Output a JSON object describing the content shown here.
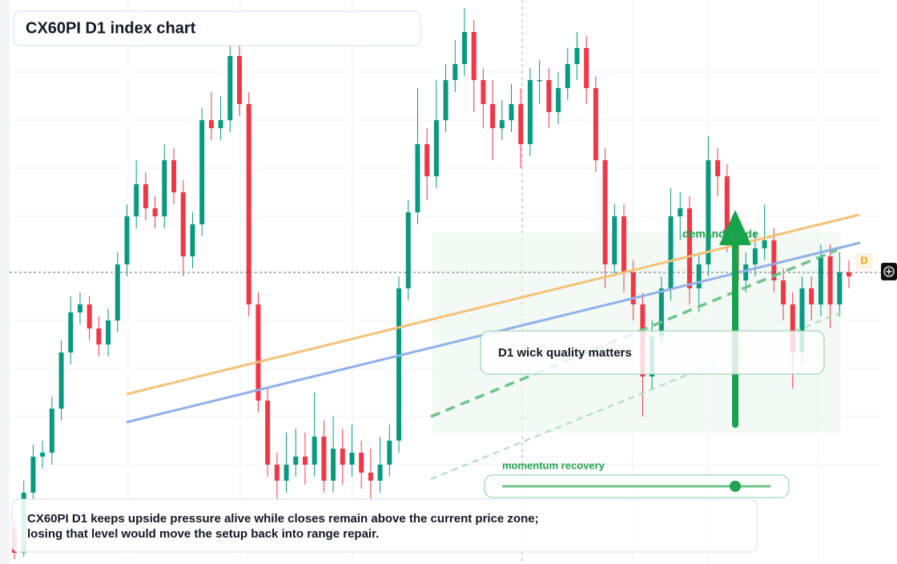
{
  "chart_data": {
    "type": "candlestick",
    "title": "CX60PI D1 index chart",
    "annotations": [
      "demand guide",
      "D1 wick quality matters",
      "momentum recovery",
      "D"
    ],
    "caption": [
      "CX60PI D1 keeps upside pressure alive while closes remain above the current price zone;",
      "losing that level would move the setup back into range repair."
    ],
    "up_color": "#089981",
    "down_color": "#f23645",
    "ylim": [
      0,
      700
    ],
    "open": [
      40,
      10,
      85,
      130,
      135,
      190,
      260,
      310,
      320,
      290,
      270,
      300,
      370,
      430,
      470,
      440,
      430,
      500,
      460,
      380,
      420,
      550,
      540,
      550,
      630,
      570,
      320,
      200,
      120,
      100,
      120,
      130,
      120,
      155,
      100,
      140,
      120,
      135,
      110,
      100,
      120,
      150,
      340,
      435,
      520,
      480,
      550,
      600,
      620,
      660,
      600,
      570,
      540,
      550,
      570,
      520,
      600,
      600,
      560,
      590,
      620,
      640,
      590,
      500,
      370,
      430,
      360,
      320,
      230,
      280,
      340,
      430,
      440,
      340,
      370,
      500,
      480,
      400,
      350,
      370,
      390,
      400,
      350,
      320,
      260,
      340,
      320,
      380,
      320,
      360
    ],
    "high": [
      55,
      100,
      145,
      150,
      205,
      275,
      330,
      335,
      330,
      305,
      315,
      385,
      445,
      500,
      485,
      455,
      520,
      515,
      475,
      435,
      565,
      585,
      580,
      645,
      645,
      585,
      335,
      215,
      135,
      160,
      165,
      160,
      210,
      175,
      180,
      165,
      170,
      150,
      140,
      155,
      170,
      355,
      450,
      590,
      540,
      600,
      620,
      650,
      690,
      675,
      615,
      600,
      575,
      595,
      590,
      615,
      625,
      615,
      610,
      640,
      660,
      655,
      605,
      515,
      445,
      445,
      375,
      335,
      300,
      355,
      465,
      460,
      455,
      385,
      530,
      515,
      495,
      415,
      385,
      410,
      445,
      415,
      365,
      335,
      355,
      355,
      395,
      395,
      385,
      375
    ],
    "low": [
      2,
      5,
      70,
      115,
      120,
      175,
      245,
      295,
      275,
      255,
      255,
      285,
      355,
      415,
      425,
      415,
      415,
      445,
      355,
      365,
      405,
      525,
      525,
      535,
      555,
      305,
      185,
      105,
      70,
      85,
      105,
      95,
      105,
      85,
      85,
      95,
      105,
      90,
      70,
      85,
      105,
      135,
      325,
      420,
      450,
      465,
      535,
      585,
      605,
      560,
      540,
      500,
      525,
      535,
      490,
      505,
      570,
      540,
      545,
      575,
      600,
      570,
      485,
      340,
      355,
      335,
      300,
      180,
      215,
      265,
      325,
      400,
      320,
      310,
      355,
      455,
      385,
      320,
      335,
      355,
      375,
      335,
      300,
      215,
      245,
      300,
      305,
      290,
      305,
      340
    ],
    "close": [
      10,
      85,
      130,
      135,
      190,
      260,
      310,
      320,
      290,
      270,
      300,
      370,
      430,
      470,
      440,
      430,
      500,
      460,
      380,
      420,
      550,
      540,
      550,
      630,
      570,
      320,
      200,
      120,
      100,
      120,
      130,
      120,
      155,
      100,
      140,
      120,
      135,
      110,
      100,
      120,
      150,
      340,
      435,
      520,
      480,
      550,
      600,
      620,
      660,
      600,
      570,
      540,
      550,
      570,
      520,
      600,
      600,
      560,
      590,
      620,
      640,
      590,
      500,
      370,
      430,
      360,
      320,
      230,
      280,
      340,
      430,
      440,
      340,
      370,
      500,
      480,
      400,
      350,
      370,
      390,
      400,
      350,
      320,
      260,
      340,
      320,
      380,
      320,
      360,
      355
    ]
  }
}
